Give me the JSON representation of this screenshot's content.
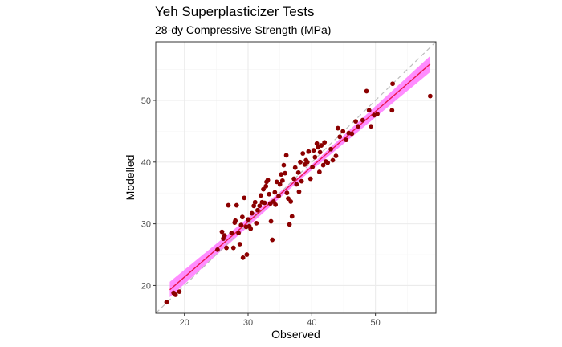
{
  "chart_data": {
    "type": "scatter",
    "title": "Yeh Superplasticizer Tests",
    "subtitle": "28-dy Compressive Strength (MPa)",
    "xlabel": "Observed",
    "ylabel": "Modelled",
    "xlim": [
      15.5,
      59.5
    ],
    "ylim": [
      15.5,
      59.5
    ],
    "xticks": [
      20,
      30,
      40,
      50,
      60
    ],
    "yticks": [
      20,
      30,
      40,
      50
    ],
    "grid": true,
    "colors": {
      "points": "#8b0000",
      "fit_line": "#e8174e",
      "confidence_band": "#ff66ff",
      "identity_line": "#bdbdbd",
      "panel_border": "#333333",
      "grid_major": "#ebebeb",
      "grid_minor": "#f5f5f5"
    },
    "fit_line": {
      "x": [
        17.7,
        58.6
      ],
      "y": [
        19.3,
        55.9
      ]
    },
    "band": {
      "x": [
        17.7,
        38,
        58.6
      ],
      "lower": [
        18.1,
        37.0,
        54.6
      ],
      "upper": [
        20.6,
        37.7,
        57.2
      ]
    },
    "identity_line": {
      "x": [
        15.5,
        59.5
      ],
      "y": [
        15.5,
        59.5
      ]
    },
    "points": [
      [
        17.2,
        17.3
      ],
      [
        18.3,
        18.8
      ],
      [
        19.2,
        19.0
      ],
      [
        18.6,
        18.5
      ],
      [
        25.2,
        25.8
      ],
      [
        25.9,
        28.7
      ],
      [
        26.3,
        28.1
      ],
      [
        26.1,
        27.6
      ],
      [
        26.6,
        26.1
      ],
      [
        26.9,
        33.0
      ],
      [
        27.4,
        28.5
      ],
      [
        27.7,
        26.1
      ],
      [
        27.9,
        30.2
      ],
      [
        28.0,
        30.5
      ],
      [
        28.2,
        33.0
      ],
      [
        28.5,
        28.5
      ],
      [
        28.7,
        26.7
      ],
      [
        28.9,
        29.8
      ],
      [
        29.1,
        31.1
      ],
      [
        29.2,
        24.5
      ],
      [
        29.4,
        34.2
      ],
      [
        29.7,
        29.5
      ],
      [
        29.8,
        25.0
      ],
      [
        30.0,
        30.7
      ],
      [
        30.2,
        29.6
      ],
      [
        30.4,
        29.2
      ],
      [
        30.6,
        31.7
      ],
      [
        30.9,
        32.9
      ],
      [
        31.1,
        33.5
      ],
      [
        31.3,
        30.1
      ],
      [
        31.5,
        32.2
      ],
      [
        31.8,
        32.9
      ],
      [
        32.0,
        34.6
      ],
      [
        32.2,
        33.5
      ],
      [
        32.4,
        35.6
      ],
      [
        32.6,
        33.4
      ],
      [
        32.8,
        36.1
      ],
      [
        32.9,
        36.8
      ],
      [
        33.1,
        37.1
      ],
      [
        33.3,
        34.8
      ],
      [
        33.5,
        33.3
      ],
      [
        33.6,
        30.4
      ],
      [
        33.8,
        27.4
      ],
      [
        34.0,
        33.6
      ],
      [
        34.2,
        35.1
      ],
      [
        34.3,
        33.1
      ],
      [
        34.5,
        36.8
      ],
      [
        34.8,
        34.5
      ],
      [
        35.0,
        36.4
      ],
      [
        35.2,
        38.0
      ],
      [
        35.4,
        37.0
      ],
      [
        35.6,
        39.5
      ],
      [
        35.8,
        38.2
      ],
      [
        36.0,
        41.1
      ],
      [
        36.1,
        35.0
      ],
      [
        36.3,
        34.1
      ],
      [
        36.5,
        29.9
      ],
      [
        36.7,
        33.6
      ],
      [
        36.9,
        31.2
      ],
      [
        37.2,
        37.3
      ],
      [
        37.4,
        39.1
      ],
      [
        37.6,
        36.4
      ],
      [
        37.9,
        38.3
      ],
      [
        38.0,
        35.2
      ],
      [
        38.2,
        40.0
      ],
      [
        38.4,
        36.9
      ],
      [
        38.6,
        41.4
      ],
      [
        38.9,
        39.6
      ],
      [
        39.1,
        40.3
      ],
      [
        39.3,
        40.0
      ],
      [
        39.5,
        41.7
      ],
      [
        39.8,
        37.3
      ],
      [
        40.1,
        39.2
      ],
      [
        40.3,
        41.9
      ],
      [
        40.5,
        40.8
      ],
      [
        40.8,
        43.0
      ],
      [
        41.0,
        42.4
      ],
      [
        41.2,
        38.4
      ],
      [
        41.3,
        41.6
      ],
      [
        41.5,
        42.7
      ],
      [
        41.8,
        39.5
      ],
      [
        42.0,
        43.2
      ],
      [
        42.2,
        40.1
      ],
      [
        42.5,
        39.9
      ],
      [
        43.0,
        42.1
      ],
      [
        43.3,
        40.3
      ],
      [
        43.8,
        41.0
      ],
      [
        44.1,
        45.5
      ],
      [
        44.4,
        44.1
      ],
      [
        44.9,
        45.0
      ],
      [
        45.4,
        43.6
      ],
      [
        45.8,
        44.7
      ],
      [
        46.3,
        44.6
      ],
      [
        46.9,
        46.6
      ],
      [
        47.3,
        45.8
      ],
      [
        48.0,
        46.8
      ],
      [
        48.6,
        51.5
      ],
      [
        49.0,
        48.4
      ],
      [
        49.3,
        45.8
      ],
      [
        49.8,
        47.6
      ],
      [
        50.3,
        47.8
      ],
      [
        52.7,
        52.7
      ],
      [
        52.6,
        48.4
      ],
      [
        58.6,
        50.7
      ]
    ]
  }
}
